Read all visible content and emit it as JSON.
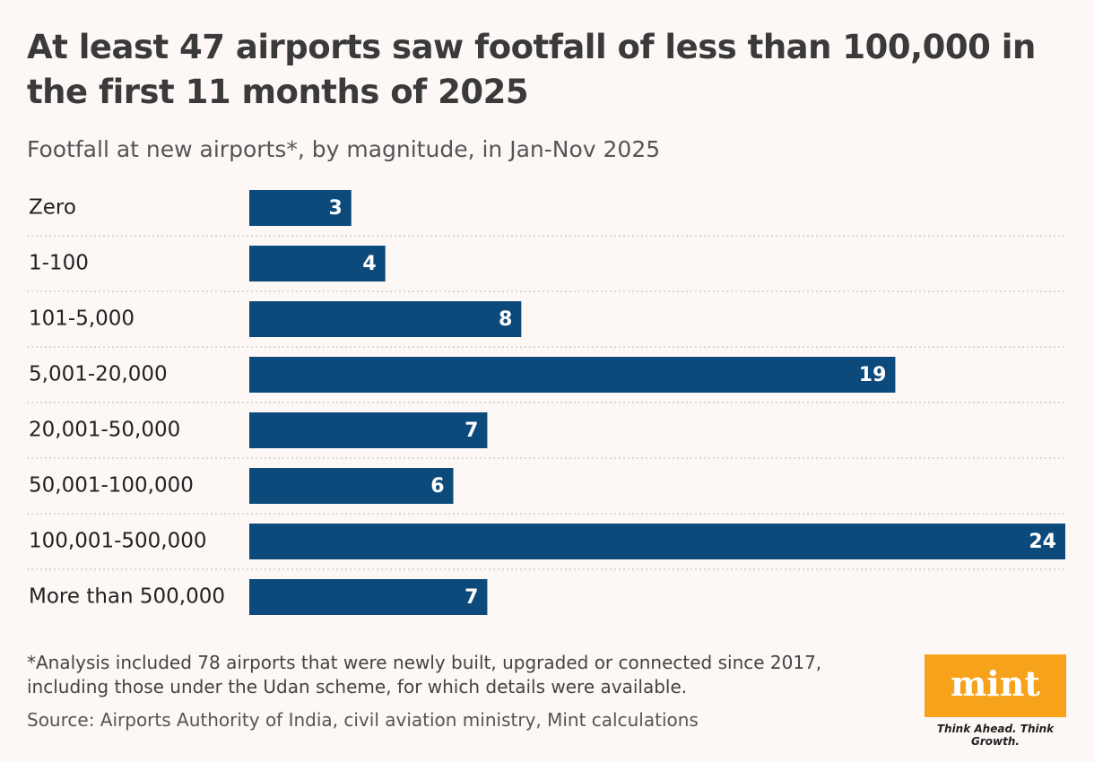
{
  "chart_data": {
    "type": "hbar",
    "title": "At least 47 airports saw footfall of less than 100,000 in the first 11 months of 2025",
    "subtitle": "Footfall at new airports*, by magnitude, in Jan-Nov 2025",
    "categories": [
      "Zero",
      "1-100",
      "101-5,000",
      "5,001-20,000",
      "20,001-50,000",
      "50,001-100,000",
      "100,001-500,000",
      "More than 500,000"
    ],
    "values": [
      3,
      4,
      8,
      19,
      7,
      6,
      24,
      7
    ],
    "color": "#0c4a7b"
  },
  "footnote": "*Analysis included 78 airports that were newly built, upgraded or connected since 2017, including those under the Udan scheme, for which details were available.",
  "source": "Source: Airports Authority of India, civil aviation ministry, Mint calculations",
  "logo": {
    "name": "mint",
    "tagline": "Think Ahead. Think Growth."
  }
}
